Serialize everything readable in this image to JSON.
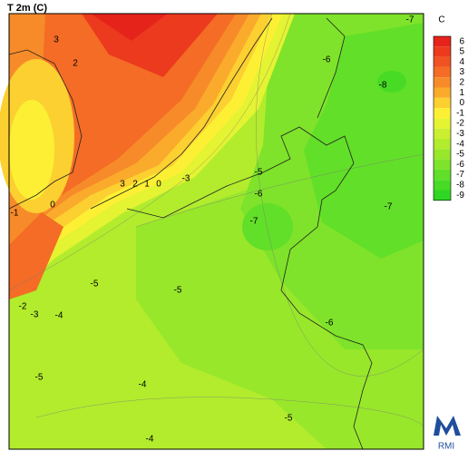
{
  "header": {
    "title": "T 2m (C)"
  },
  "colorbar": {
    "unit": "C",
    "levels": [
      6,
      5,
      4,
      3,
      2,
      1,
      0,
      -1,
      -2,
      -3,
      -4,
      -5,
      -6,
      -7,
      -8,
      -9
    ],
    "colors": [
      "#e5231b",
      "#ec3a1e",
      "#f15222",
      "#f46c25",
      "#f78b29",
      "#faab2c",
      "#fcd030",
      "#fdf034",
      "#e4f332",
      "#cbef30",
      "#b2ec2d",
      "#98e72b",
      "#7ee32a",
      "#62df28",
      "#48db26",
      "#2fd724"
    ]
  },
  "contour_labels": [
    3,
    2,
    -7,
    -6,
    -8,
    3,
    2,
    1,
    0,
    -3,
    -5,
    -6,
    -7,
    -7,
    -1,
    0,
    -5,
    -5,
    -2,
    -3,
    -4,
    -6,
    -5,
    -4,
    -5,
    -4
  ],
  "logo": "RMI"
}
